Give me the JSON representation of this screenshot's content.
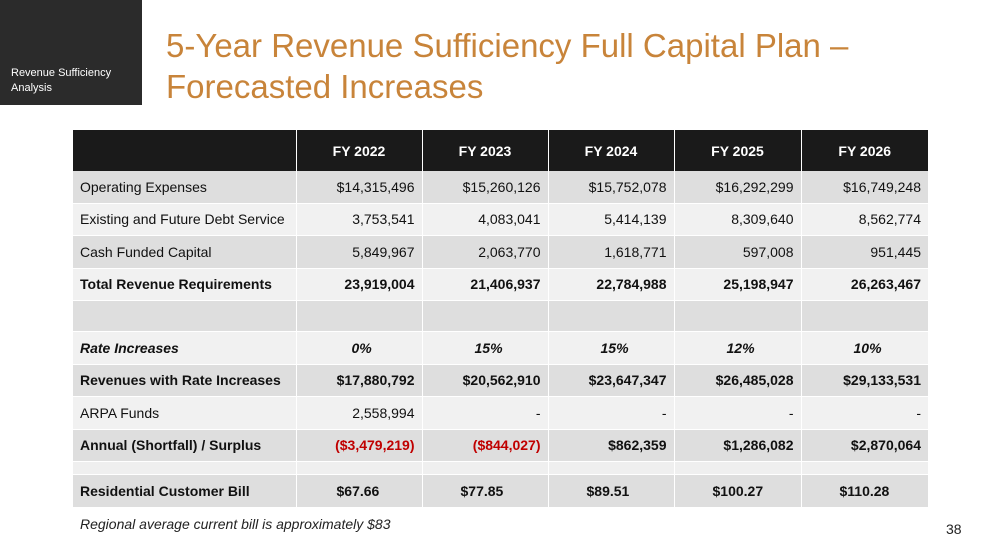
{
  "section_tag": "Revenue Sufficiency Analysis",
  "title": "5-Year Revenue Sufficiency Full Capital Plan – Forecasted Increases",
  "columns": [
    "",
    "FY 2022",
    "FY 2023",
    "FY 2024",
    "FY 2025",
    "FY 2026"
  ],
  "rows": {
    "operating_expenses": {
      "label": "Operating Expenses",
      "values": [
        "$14,315,496",
        "$15,260,126",
        "$15,752,078",
        "$16,292,299",
        "$16,749,248"
      ]
    },
    "debt_service": {
      "label": "Existing and Future Debt Service",
      "values": [
        "3,753,541",
        "4,083,041",
        "5,414,139",
        "8,309,640",
        "8,562,774"
      ]
    },
    "cash_funded_capital": {
      "label": "Cash Funded Capital",
      "values": [
        "5,849,967",
        "2,063,770",
        "1,618,771",
        "597,008",
        "951,445"
      ]
    },
    "total_revenue_requirements": {
      "label": "Total Revenue Requirements",
      "values": [
        "23,919,004",
        "21,406,937",
        "22,784,988",
        "25,198,947",
        "26,263,467"
      ]
    },
    "rate_increases": {
      "label": "Rate Increases",
      "values": [
        "0%",
        "15%",
        "15%",
        "12%",
        "10%"
      ]
    },
    "revenues_with_rate_increases": {
      "label": "Revenues with Rate Increases",
      "values": [
        "$17,880,792",
        "$20,562,910",
        "$23,647,347",
        "$26,485,028",
        "$29,133,531"
      ]
    },
    "arpa_funds": {
      "label": "ARPA Funds",
      "values": [
        "2,558,994",
        "-",
        "-",
        "-",
        "-"
      ]
    },
    "shortfall_surplus": {
      "label": "Annual (Shortfall) / Surplus",
      "values": [
        "($3,479,219)",
        "($844,027)",
        "$862,359",
        "$1,286,082",
        "$2,870,064"
      ]
    },
    "residential_bill": {
      "label": "Residential Customer Bill",
      "values": [
        "$67.66",
        "$77.85",
        "$89.51",
        "$100.27",
        "$110.28"
      ]
    }
  },
  "colors": {
    "title": "#c8843a",
    "header_bg": "#1a1a1a",
    "negative": "#c00000"
  },
  "footnote": "Regional average current bill is approximately $83",
  "page_number": "38"
}
